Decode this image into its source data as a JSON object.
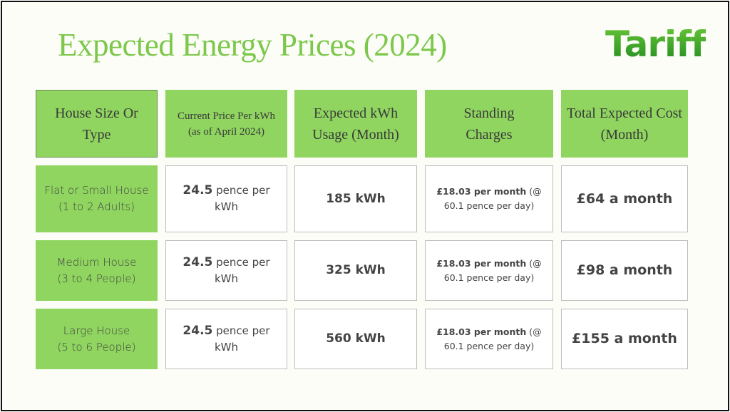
{
  "title": "Expected Energy Prices (2024)",
  "logo": "Tariff",
  "colors": {
    "accent": "#8fd55f",
    "title": "#7cc84a"
  },
  "headers": [
    "House Size Or Type",
    "Current Price Per kWh (as of April 2024)",
    "Expected kWh Usage (Month)",
    "Standing Charges",
    "Total Expected Cost (Month)"
  ],
  "rows": [
    {
      "type": "Flat or Small House",
      "people": "(1 to 2 Adults)",
      "price_value": "24.5",
      "price_unit": "pence per kWh",
      "usage": "185 kWh",
      "standing_bold": "£18.03 per month",
      "standing_rest": "(@ 60.1 pence per day)",
      "total": "£64 a month"
    },
    {
      "type": "Medium House",
      "people": "(3 to 4 People)",
      "price_value": "24.5",
      "price_unit": "pence per kWh",
      "usage": "325 kWh",
      "standing_bold": "£18.03 per month",
      "standing_rest": "(@ 60.1 pence per day)",
      "total": "£98 a month"
    },
    {
      "type": "Large House",
      "people": "(5 to 6 People)",
      "price_value": "24.5",
      "price_unit": "pence per kWh",
      "usage": "560 kWh",
      "standing_bold": "£18.03 per month",
      "standing_rest": "(@ 60.1 pence per day)",
      "total": "£155 a month"
    }
  ]
}
